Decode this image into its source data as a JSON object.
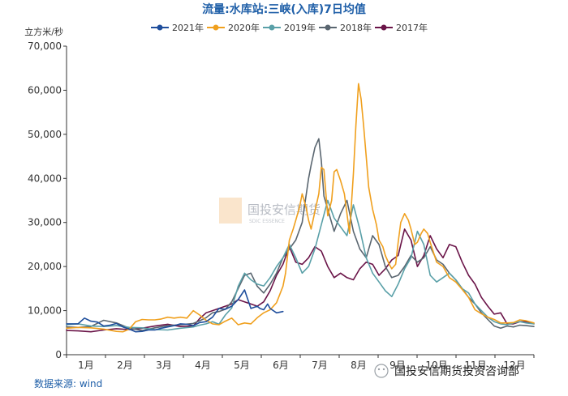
{
  "chart_data": {
    "type": "line",
    "title": "流量:水库站:三峡(入库)7日均值",
    "ylabel": "立方米/秒",
    "ylim": [
      0,
      70000
    ],
    "yticks": [
      "0",
      "10,000",
      "20,000",
      "30,000",
      "40,000",
      "50,000",
      "60,000",
      "70,000"
    ],
    "xlim": [
      1,
      366
    ],
    "xticks": [
      "1月",
      "2月",
      "3月",
      "4月",
      "5月",
      "6月",
      "7月",
      "8月",
      "9月",
      "10月",
      "11月",
      "12月"
    ],
    "grid": false,
    "legend_position": "top",
    "series": [
      {
        "name": "2021年",
        "color": "#1f4e9c",
        "x": [
          1,
          10,
          15,
          20,
          25,
          30,
          35,
          40,
          45,
          50,
          55,
          60,
          65,
          70,
          75,
          80,
          85,
          90,
          95,
          100,
          105,
          110,
          115,
          120,
          125,
          130,
          135,
          140,
          145,
          150,
          152,
          155,
          158,
          160,
          165,
          170
        ],
        "y": [
          7000,
          7000,
          8300,
          7600,
          7400,
          6500,
          6700,
          7100,
          6300,
          5800,
          5200,
          5300,
          5600,
          5600,
          6000,
          6300,
          6600,
          7000,
          6900,
          6600,
          7300,
          7500,
          8500,
          10500,
          10300,
          11000,
          12500,
          14700,
          10500,
          11000,
          10500,
          10200,
          11500,
          10500,
          9500,
          9800
        ]
      },
      {
        "name": "2020年",
        "color": "#f0a01e",
        "x": [
          1,
          10,
          20,
          30,
          40,
          45,
          50,
          55,
          60,
          65,
          70,
          75,
          80,
          85,
          90,
          95,
          100,
          105,
          110,
          115,
          120,
          125,
          130,
          135,
          140,
          145,
          150,
          155,
          160,
          165,
          170,
          172,
          175,
          178,
          180,
          183,
          185,
          188,
          190,
          192,
          195,
          198,
          200,
          202,
          205,
          208,
          210,
          212,
          215,
          218,
          220,
          222,
          225,
          227,
          229,
          231,
          233,
          235,
          237,
          240,
          243,
          245,
          248,
          250,
          253,
          255,
          258,
          260,
          262,
          265,
          268,
          270,
          273,
          275,
          278,
          280,
          283,
          285,
          290,
          295,
          300,
          305,
          310,
          315,
          320,
          325,
          330,
          335,
          340,
          345,
          350,
          355,
          360,
          366
        ],
        "y": [
          6000,
          6200,
          6100,
          5800,
          5300,
          5200,
          5800,
          7500,
          8000,
          7900,
          7900,
          8100,
          8500,
          8300,
          8500,
          8300,
          10000,
          9000,
          7800,
          7000,
          6800,
          7600,
          8300,
          6800,
          7200,
          7000,
          8400,
          9500,
          10200,
          11800,
          15500,
          18500,
          26000,
          28500,
          30500,
          33500,
          36500,
          33500,
          30500,
          28500,
          32500,
          36500,
          42500,
          42000,
          31500,
          35000,
          41500,
          42000,
          39500,
          36500,
          32000,
          27500,
          41000,
          52000,
          61500,
          58000,
          52000,
          45000,
          38000,
          33000,
          29500,
          26000,
          24500,
          22500,
          20500,
          19500,
          20500,
          25500,
          30000,
          32000,
          30500,
          28500,
          25000,
          25500,
          27500,
          28500,
          27500,
          25500,
          21000,
          20000,
          17500,
          16500,
          14800,
          13000,
          10200,
          9300,
          8500,
          8000,
          7200,
          7200,
          7300,
          7900,
          7700,
          7200
        ]
      },
      {
        "name": "2019年",
        "color": "#5aa0a8",
        "x": [
          1,
          10,
          20,
          30,
          40,
          50,
          60,
          70,
          80,
          90,
          100,
          105,
          110,
          115,
          120,
          125,
          130,
          135,
          140,
          145,
          150,
          155,
          160,
          165,
          170,
          175,
          180,
          185,
          190,
          195,
          200,
          205,
          210,
          215,
          220,
          225,
          230,
          235,
          240,
          245,
          250,
          255,
          260,
          265,
          270,
          275,
          280,
          285,
          290,
          295,
          300,
          305,
          310,
          315,
          320,
          325,
          330,
          335,
          340,
          345,
          350,
          355,
          360,
          366
        ],
        "y": [
          6800,
          7000,
          6500,
          6400,
          6600,
          6200,
          6100,
          5700,
          5600,
          6000,
          6300,
          6700,
          7000,
          7500,
          6900,
          9000,
          10600,
          15500,
          18500,
          17000,
          16000,
          15600,
          17500,
          20000,
          22000,
          25000,
          22000,
          18500,
          20000,
          24000,
          29500,
          35000,
          31000,
          29000,
          27000,
          34000,
          28500,
          22000,
          18500,
          16500,
          14500,
          13200,
          16000,
          19500,
          22000,
          28000,
          25000,
          18000,
          16500,
          17500,
          18500,
          17000,
          15000,
          14000,
          11500,
          10000,
          8500,
          7500,
          7000,
          6800,
          7200,
          7500,
          7200,
          7000
        ]
      },
      {
        "name": "2018年",
        "color": "#5a6670",
        "x": [
          1,
          10,
          20,
          30,
          40,
          50,
          60,
          70,
          80,
          90,
          100,
          105,
          110,
          115,
          120,
          125,
          130,
          135,
          140,
          145,
          150,
          155,
          160,
          165,
          170,
          175,
          180,
          185,
          188,
          190,
          192,
          195,
          198,
          200,
          202,
          205,
          210,
          215,
          220,
          225,
          230,
          235,
          240,
          245,
          250,
          255,
          260,
          265,
          270,
          275,
          280,
          285,
          290,
          295,
          300,
          305,
          310,
          315,
          320,
          325,
          330,
          335,
          340,
          345,
          350,
          355,
          360,
          366
        ],
        "y": [
          6300,
          6200,
          6400,
          7800,
          7200,
          6000,
          5500,
          6100,
          6600,
          6800,
          7100,
          7700,
          8400,
          9500,
          9800,
          10300,
          12000,
          15000,
          18000,
          18500,
          15500,
          14000,
          16000,
          18500,
          22000,
          24000,
          26000,
          30000,
          36000,
          40000,
          43000,
          47000,
          49000,
          44000,
          36000,
          33000,
          28000,
          32000,
          35000,
          28000,
          24000,
          22000,
          27000,
          25000,
          20000,
          17500,
          18000,
          20000,
          22500,
          21000,
          22000,
          24500,
          21500,
          20500,
          18500,
          17000,
          15000,
          13000,
          11500,
          9500,
          8000,
          6500,
          6000,
          6500,
          6300,
          6700,
          6600,
          6400
        ]
      },
      {
        "name": "2017年",
        "color": "#6a1448",
        "x": [
          1,
          10,
          20,
          30,
          40,
          50,
          60,
          70,
          80,
          90,
          100,
          105,
          110,
          115,
          120,
          125,
          130,
          135,
          140,
          145,
          150,
          155,
          160,
          165,
          170,
          175,
          180,
          185,
          190,
          195,
          200,
          205,
          210,
          215,
          220,
          225,
          230,
          235,
          240,
          245,
          250,
          255,
          260,
          265,
          270,
          275,
          280,
          285,
          290,
          295,
          300,
          305,
          310,
          315,
          320,
          325,
          330,
          335,
          340,
          345,
          350,
          355,
          360,
          366
        ],
        "y": [
          5500,
          5400,
          5200,
          5600,
          5900,
          5700,
          6000,
          6500,
          6900,
          6400,
          6500,
          8200,
          9500,
          10000,
          10500,
          11000,
          11500,
          12500,
          12000,
          11500,
          11000,
          12000,
          14500,
          18000,
          20500,
          24500,
          21000,
          20500,
          22000,
          24500,
          23500,
          20000,
          17500,
          18500,
          17500,
          17000,
          19500,
          21000,
          20500,
          18000,
          19500,
          21500,
          22500,
          28500,
          26000,
          20000,
          22500,
          27000,
          24000,
          22000,
          25000,
          24500,
          21000,
          18000,
          16000,
          13000,
          11000,
          9200,
          9500,
          7000,
          7000,
          7500,
          7500,
          7000
        ]
      }
    ]
  },
  "source": "数据来源: wind",
  "watermark": {
    "cn": "国投安信期货",
    "en": "SDIC ESSENCE"
  },
  "brand": "国投安信期货投资咨询部"
}
